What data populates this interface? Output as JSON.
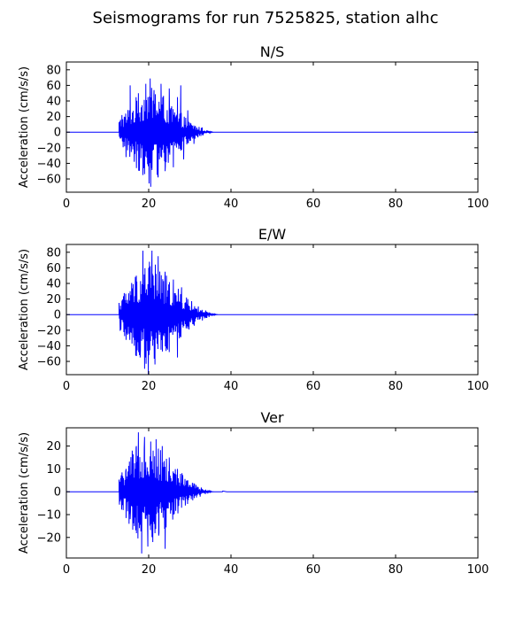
{
  "figure": {
    "suptitle": "Seismograms for run 7525825, station alhc"
  },
  "colors": {
    "trace": "#0000ff",
    "axes": "#000000",
    "background": "#ffffff"
  },
  "chart_data": [
    {
      "type": "line",
      "title": "N/S",
      "xlabel": "",
      "ylabel": "Acceleration (cm/s/s)",
      "xlim": [
        0,
        100
      ],
      "ylim": [
        -77,
        90
      ],
      "xticks": [
        0,
        20,
        40,
        60,
        80,
        100
      ],
      "yticks": [
        -60,
        -40,
        -20,
        0,
        20,
        40,
        60,
        80
      ],
      "grid": false,
      "series": [
        {
          "color": "#0000ff",
          "signal": {
            "onset": 12.8,
            "peak_time": 20.5,
            "decay_end": 36.0,
            "peak_amplitude": 70,
            "baseline": 0
          },
          "peaks": [
            [
              13.5,
              22
            ],
            [
              14.5,
              -32
            ],
            [
              15.5,
              60
            ],
            [
              16.5,
              -38
            ],
            [
              17.5,
              50
            ],
            [
              18.6,
              -55
            ],
            [
              19.3,
              62
            ],
            [
              20.5,
              -70
            ],
            [
              21.3,
              54
            ],
            [
              22.3,
              -58
            ],
            [
              23.0,
              62
            ],
            [
              24.0,
              -50
            ],
            [
              25.0,
              56
            ],
            [
              26.0,
              -45
            ],
            [
              27.0,
              45
            ],
            [
              27.8,
              60
            ],
            [
              28.5,
              -35
            ],
            [
              29.5,
              28
            ],
            [
              31.0,
              -15
            ],
            [
              33.0,
              6
            ]
          ]
        }
      ]
    },
    {
      "type": "line",
      "title": "E/W",
      "xlabel": "",
      "ylabel": "Acceleration (cm/s/s)",
      "xlim": [
        0,
        100
      ],
      "ylim": [
        -77,
        90
      ],
      "xticks": [
        0,
        20,
        40,
        60,
        80,
        100
      ],
      "yticks": [
        -60,
        -40,
        -20,
        0,
        20,
        40,
        60,
        80
      ],
      "grid": false,
      "series": [
        {
          "color": "#0000ff",
          "signal": {
            "onset": 12.8,
            "peak_time": 20.0,
            "decay_end": 37.0,
            "peak_amplitude": 80,
            "baseline": 0
          },
          "peaks": [
            [
              13.5,
              18
            ],
            [
              14.5,
              -25
            ],
            [
              15.5,
              30
            ],
            [
              16.5,
              -40
            ],
            [
              17.0,
              50
            ],
            [
              18.0,
              -45
            ],
            [
              18.6,
              82
            ],
            [
              19.2,
              -55
            ],
            [
              20.0,
              60
            ],
            [
              20.8,
              82
            ],
            [
              21.5,
              -50
            ],
            [
              22.3,
              75
            ],
            [
              23.0,
              -45
            ],
            [
              24.0,
              55
            ],
            [
              25.0,
              -48
            ],
            [
              26.0,
              45
            ],
            [
              27.0,
              -55
            ],
            [
              28.0,
              35
            ],
            [
              29.5,
              20
            ],
            [
              31.0,
              -12
            ],
            [
              33.0,
              5
            ]
          ]
        }
      ]
    },
    {
      "type": "line",
      "title": "Ver",
      "xlabel": "",
      "ylabel": "Acceleration (cm/s/s)",
      "xlim": [
        0,
        100
      ],
      "ylim": [
        -29,
        28
      ],
      "xticks": [
        0,
        20,
        40,
        60,
        80,
        100
      ],
      "yticks": [
        -20,
        -10,
        0,
        10,
        20
      ],
      "grid": false,
      "series": [
        {
          "color": "#0000ff",
          "signal": {
            "onset": 12.8,
            "peak_time": 19.5,
            "decay_end": 36.0,
            "peak_amplitude": 27,
            "baseline": 0
          },
          "peaks": [
            [
              13.2,
              6
            ],
            [
              13.8,
              -8
            ],
            [
              14.5,
              10
            ],
            [
              15.5,
              -12
            ],
            [
              16.0,
              18
            ],
            [
              16.5,
              -15
            ],
            [
              17.0,
              20
            ],
            [
              17.5,
              26
            ],
            [
              18.3,
              -27
            ],
            [
              19.0,
              24
            ],
            [
              19.8,
              -24
            ],
            [
              20.5,
              22
            ],
            [
              21.0,
              -22
            ],
            [
              21.8,
              23
            ],
            [
              22.5,
              -18
            ],
            [
              23.3,
              20
            ],
            [
              24.0,
              -25
            ],
            [
              25.0,
              15
            ],
            [
              26.0,
              -10
            ],
            [
              27.0,
              10
            ],
            [
              28.0,
              -7
            ],
            [
              29.5,
              5
            ],
            [
              32.0,
              2
            ],
            [
              38.0,
              0.3
            ]
          ]
        }
      ]
    }
  ]
}
